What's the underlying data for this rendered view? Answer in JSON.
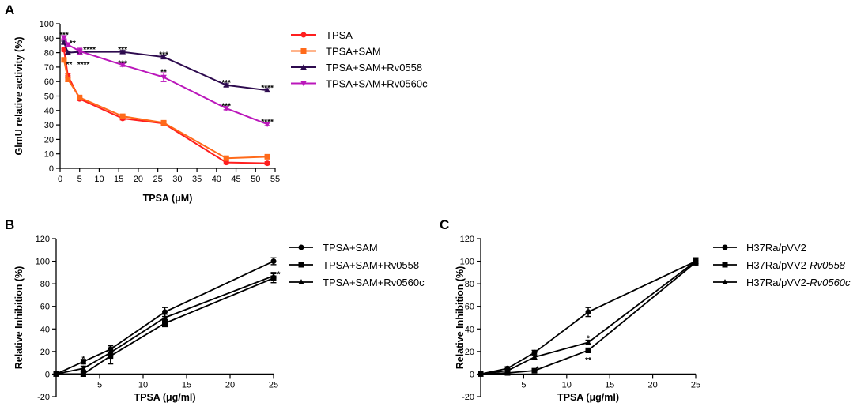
{
  "chart_data": [
    {
      "panel": "A",
      "type": "line",
      "title": "",
      "xlabel": "TPSA (μM)",
      "ylabel": "GlmU relative activity (%)",
      "xlim": [
        0,
        55
      ],
      "ylim": [
        0,
        100
      ],
      "xticks": [
        0,
        5,
        10,
        15,
        20,
        25,
        30,
        35,
        40,
        45,
        50,
        55
      ],
      "yticks": [
        0,
        10,
        20,
        30,
        40,
        50,
        60,
        70,
        80,
        90,
        100
      ],
      "series": [
        {
          "name": "TPSA",
          "color": "#ff1f1f",
          "marker": "circle",
          "x": [
            1,
            2,
            5,
            16,
            26.5,
            42.5,
            53
          ],
          "y": [
            82,
            64,
            48,
            34.5,
            31,
            4,
            3.5
          ],
          "err": [
            1,
            1.5,
            1,
            1,
            1,
            1,
            1
          ]
        },
        {
          "name": "TPSA+SAM",
          "color": "#ff6a1a",
          "marker": "square",
          "x": [
            1,
            2,
            5,
            16,
            26.5,
            42.5,
            53
          ],
          "y": [
            75,
            61.5,
            49,
            36,
            31.5,
            7,
            8
          ],
          "err": [
            1,
            1.5,
            1,
            1,
            1,
            1,
            1
          ]
        },
        {
          "name": "TPSA+SAM+Rv0558",
          "color": "#2d0a4e",
          "marker": "triangle-up",
          "x": [
            1,
            2,
            5,
            16,
            26.5,
            42.5,
            53
          ],
          "y": [
            87,
            80,
            80.5,
            80.5,
            77,
            57.5,
            54
          ],
          "err": [
            1,
            1,
            1.5,
            1,
            1,
            1,
            1
          ]
        },
        {
          "name": "TPSA+SAM+Rv0560c",
          "color": "#bb17bb",
          "marker": "triangle-down",
          "x": [
            1,
            2,
            5,
            16,
            26.5,
            42.5,
            53
          ],
          "y": [
            90.5,
            85.5,
            81,
            71.5,
            63,
            41.5,
            30.5
          ],
          "err": [
            1,
            1,
            2,
            1,
            3,
            1,
            1
          ]
        }
      ],
      "annotations": [
        {
          "text": "***",
          "x": 1,
          "y": 92.5
        },
        {
          "text": "**",
          "x": 3.2,
          "y": 87
        },
        {
          "text": "****",
          "x": 7.5,
          "y": 82.5
        },
        {
          "text": "**",
          "x": 2.3,
          "y": 72
        },
        {
          "text": "****",
          "x": 6,
          "y": 72
        },
        {
          "text": "***",
          "x": 16,
          "y": 82.5
        },
        {
          "text": "***",
          "x": 16,
          "y": 73
        },
        {
          "text": "***",
          "x": 26.5,
          "y": 79
        },
        {
          "text": "**",
          "x": 26.5,
          "y": 67
        },
        {
          "text": "***",
          "x": 42.5,
          "y": 59.5
        },
        {
          "text": "***",
          "x": 42.5,
          "y": 43.5
        },
        {
          "text": "****",
          "x": 53,
          "y": 56
        },
        {
          "text": "****",
          "x": 53,
          "y": 32.5
        }
      ]
    },
    {
      "panel": "B",
      "type": "line",
      "title": "",
      "xlabel": "TPSA (μg/ml)",
      "ylabel": "Relative Inhibition (%)",
      "xlim": [
        0,
        25
      ],
      "ylim": [
        -20,
        120
      ],
      "xticks": [
        5,
        10,
        15,
        20,
        25
      ],
      "yticks": [
        -20,
        0,
        20,
        40,
        60,
        80,
        100,
        120
      ],
      "series": [
        {
          "name": "TPSA+SAM",
          "color": "#000000",
          "marker": "circle",
          "x": [
            0,
            3.125,
            6.25,
            12.5,
            25
          ],
          "y": [
            0,
            11,
            22,
            55,
            100
          ],
          "err": [
            0,
            2,
            3,
            4,
            3
          ]
        },
        {
          "name": "TPSA+SAM+Rv0558",
          "color": "#000000",
          "marker": "square",
          "x": [
            0,
            3.125,
            6.25,
            12.5,
            25
          ],
          "y": [
            0,
            0,
            16,
            45,
            85
          ],
          "err": [
            0,
            2,
            7,
            3,
            4
          ]
        },
        {
          "name": "TPSA+SAM+Rv0560c",
          "color": "#000000",
          "marker": "triangle-up",
          "x": [
            0,
            3.125,
            6.25,
            12.5,
            25
          ],
          "y": [
            0,
            5,
            19,
            50,
            87
          ],
          "err": [
            0,
            2,
            3,
            3,
            3
          ]
        }
      ],
      "annotations": [
        {
          "text": "*",
          "x": 3.125,
          "y": 14
        },
        {
          "text": "*",
          "x": 25.6,
          "y": 89
        }
      ]
    },
    {
      "panel": "C",
      "type": "line",
      "title": "",
      "xlabel": "TPSA (μg/ml)",
      "ylabel": "Relative Inhibition (%)",
      "xlim": [
        0,
        25
      ],
      "ylim": [
        -20,
        120
      ],
      "xticks": [
        5,
        10,
        15,
        20,
        25
      ],
      "yticks": [
        -20,
        0,
        20,
        40,
        60,
        80,
        100,
        120
      ],
      "series": [
        {
          "name": "H37Ra/pVV2",
          "color": "#000000",
          "marker": "circle",
          "x": [
            0,
            3.125,
            6.25,
            12.5,
            25
          ],
          "y": [
            0,
            5,
            19,
            55,
            100
          ],
          "err": [
            0,
            1.5,
            2,
            4,
            3
          ]
        },
        {
          "name": "H37Ra/pVV2-",
          "name_italic": "Rv0558",
          "color": "#000000",
          "marker": "square",
          "x": [
            0,
            3.125,
            6.25,
            12.5,
            25
          ],
          "y": [
            0,
            1,
            3,
            21,
            99
          ],
          "err": [
            0,
            1,
            1,
            2,
            3
          ]
        },
        {
          "name": "H37Ra/pVV2-",
          "name_italic": "Rv0560c",
          "color": "#000000",
          "marker": "triangle-up",
          "x": [
            0,
            3.125,
            6.25,
            12.5,
            25
          ],
          "y": [
            0,
            3,
            15,
            28,
            100
          ],
          "err": [
            0,
            1,
            2,
            2,
            3
          ]
        }
      ],
      "annotations": [
        {
          "text": "*",
          "x": 6.6,
          "y": 5
        },
        {
          "text": "*",
          "x": 12.5,
          "y": 32
        },
        {
          "text": "**",
          "x": 12.5,
          "y": 13
        }
      ]
    }
  ]
}
